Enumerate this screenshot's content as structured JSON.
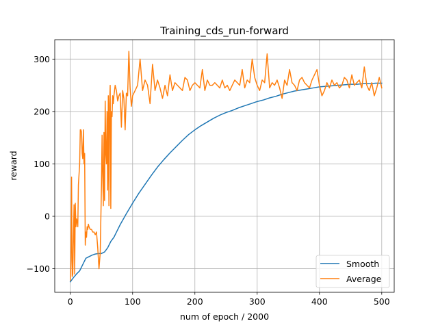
{
  "chart_data": {
    "type": "line",
    "title": "Training_cds_run-forward",
    "xlabel": "num of epoch / 2000",
    "ylabel": "reward",
    "xlim": [
      -25,
      520
    ],
    "ylim": [
      -145,
      337
    ],
    "xticks": [
      0,
      100,
      200,
      300,
      400,
      500
    ],
    "yticks": [
      -100,
      0,
      100,
      200,
      300
    ],
    "xtick_labels": [
      "0",
      "100",
      "200",
      "300",
      "400",
      "500"
    ],
    "ytick_labels": [
      "−100",
      "0",
      "100",
      "200",
      "300"
    ],
    "grid": true,
    "legend_position": "lower right",
    "series": [
      {
        "name": "Smooth",
        "color": "#1f77b4",
        "x": [
          0,
          5,
          10,
          15,
          20,
          25,
          30,
          35,
          40,
          45,
          50,
          55,
          60,
          65,
          70,
          75,
          80,
          90,
          100,
          110,
          120,
          130,
          140,
          150,
          160,
          170,
          180,
          190,
          200,
          210,
          220,
          230,
          240,
          250,
          260,
          270,
          280,
          290,
          300,
          310,
          320,
          330,
          340,
          350,
          360,
          370,
          380,
          390,
          400,
          410,
          420,
          430,
          440,
          450,
          460,
          470,
          480,
          490,
          500
        ],
        "y": [
          -125,
          -117,
          -110,
          -104,
          -92,
          -80,
          -77,
          -74,
          -72,
          -71,
          -71,
          -68,
          -60,
          -48,
          -40,
          -28,
          -16,
          5,
          25,
          44,
          61,
          78,
          94,
          108,
          121,
          133,
          145,
          156,
          165,
          173,
          180,
          187,
          193,
          198,
          202,
          207,
          211,
          215,
          219,
          222,
          226,
          229,
          233,
          236,
          239,
          241,
          243,
          245,
          247,
          248,
          249,
          250,
          251,
          252,
          252,
          253,
          253,
          254,
          254
        ]
      },
      {
        "name": "Average",
        "color": "#ff7f0e",
        "x": [
          0,
          1,
          2,
          3,
          4,
          5,
          6,
          7,
          8,
          9,
          10,
          11,
          12,
          13,
          14,
          15,
          16,
          17,
          18,
          19,
          20,
          21,
          22,
          23,
          24,
          25,
          26,
          27,
          28,
          29,
          30,
          32,
          34,
          36,
          38,
          40,
          42,
          44,
          46,
          48,
          50,
          51,
          52,
          53,
          54,
          55,
          56,
          57,
          58,
          59,
          60,
          61,
          62,
          63,
          64,
          65,
          66,
          67,
          68,
          69,
          70,
          72,
          74,
          76,
          78,
          80,
          82,
          84,
          86,
          88,
          90,
          92,
          94,
          96,
          98,
          100,
          104,
          108,
          112,
          116,
          120,
          124,
          128,
          132,
          136,
          140,
          144,
          148,
          152,
          156,
          160,
          164,
          168,
          172,
          176,
          180,
          184,
          188,
          192,
          196,
          200,
          204,
          208,
          212,
          216,
          220,
          224,
          228,
          232,
          236,
          240,
          244,
          248,
          252,
          256,
          260,
          264,
          268,
          272,
          276,
          280,
          284,
          288,
          292,
          296,
          300,
          304,
          308,
          312,
          316,
          320,
          324,
          328,
          332,
          336,
          340,
          344,
          348,
          352,
          356,
          360,
          364,
          368,
          372,
          376,
          380,
          384,
          388,
          392,
          396,
          400,
          404,
          408,
          412,
          416,
          420,
          424,
          428,
          432,
          436,
          440,
          444,
          448,
          452,
          456,
          460,
          464,
          468,
          472,
          476,
          480,
          484,
          488,
          492,
          496,
          500
        ],
        "y": [
          -122,
          -85,
          75,
          -115,
          -110,
          -40,
          22,
          -110,
          25,
          -20,
          -5,
          -10,
          -20,
          60,
          80,
          100,
          165,
          165,
          160,
          120,
          110,
          165,
          100,
          120,
          -55,
          -30,
          -40,
          -20,
          -25,
          -15,
          -20,
          -25,
          -25,
          -30,
          -30,
          -35,
          -30,
          -60,
          -100,
          -70,
          60,
          155,
          80,
          20,
          160,
          30,
          220,
          120,
          100,
          200,
          50,
          230,
          20,
          215,
          250,
          15,
          200,
          190,
          230,
          215,
          230,
          250,
          240,
          220,
          230,
          235,
          170,
          240,
          225,
          165,
          235,
          230,
          315,
          245,
          210,
          230,
          240,
          250,
          300,
          240,
          260,
          250,
          215,
          290,
          240,
          260,
          245,
          225,
          250,
          230,
          270,
          240,
          255,
          250,
          245,
          240,
          265,
          260,
          240,
          250,
          255,
          250,
          245,
          280,
          240,
          260,
          250,
          250,
          255,
          250,
          245,
          260,
          245,
          250,
          240,
          250,
          260,
          255,
          250,
          280,
          245,
          260,
          255,
          300,
          265,
          250,
          240,
          260,
          255,
          310,
          245,
          255,
          250,
          260,
          245,
          225,
          260,
          250,
          280,
          255,
          250,
          240,
          260,
          265,
          255,
          250,
          245,
          260,
          270,
          280,
          250,
          230,
          240,
          255,
          245,
          260,
          250,
          255,
          245,
          250,
          265,
          260,
          245,
          270,
          250,
          255,
          260,
          245,
          285,
          250,
          240,
          255,
          230,
          245,
          265,
          245
        ]
      }
    ]
  }
}
